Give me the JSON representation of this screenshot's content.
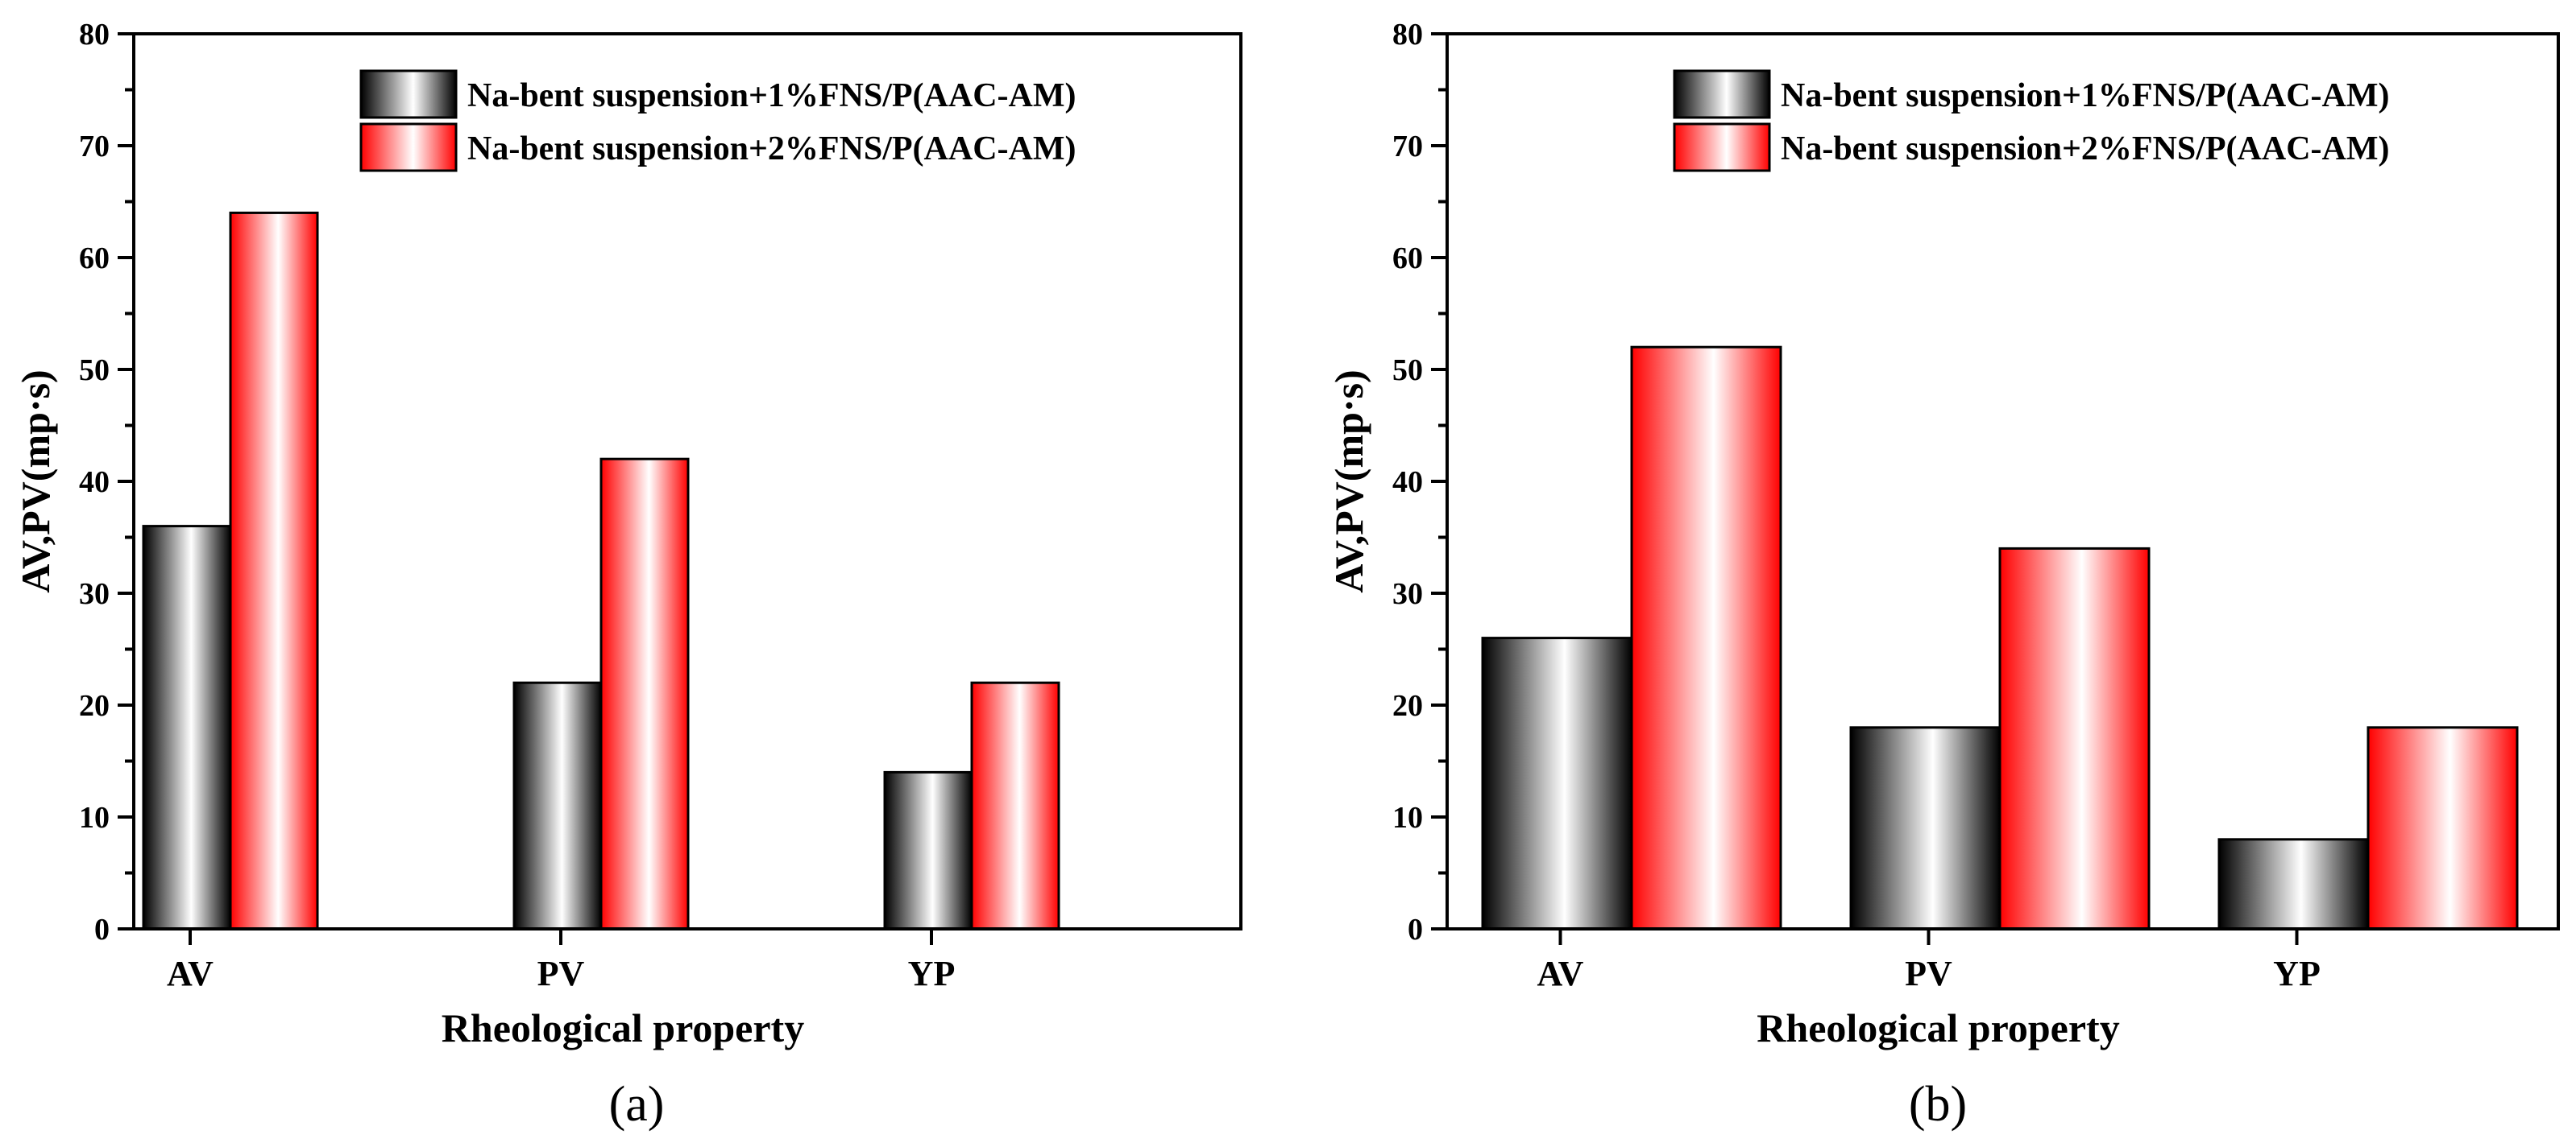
{
  "chart_data": [
    {
      "type": "bar",
      "panel_label": "(a)",
      "categories": [
        "AV",
        "PV",
        "YP"
      ],
      "series": [
        {
          "name": "Na-bent suspension+1%FNS/P(AAC-AM)",
          "values": [
            36,
            22,
            14
          ],
          "color": "#000000"
        },
        {
          "name": "Na-bent suspension+2%FNS/P(AAC-AM)",
          "values": [
            64,
            42,
            22
          ],
          "color": "#ff0000"
        }
      ],
      "xlabel": "Rheological property",
      "ylabel": "AV,PV(mp·s)",
      "ylim": [
        0,
        80
      ],
      "yticks": [
        0,
        10,
        20,
        30,
        40,
        50,
        60,
        70,
        80
      ],
      "legend_position": "top-right"
    },
    {
      "type": "bar",
      "panel_label": "(b)",
      "categories": [
        "AV",
        "PV",
        "YP"
      ],
      "series": [
        {
          "name": "Na-bent suspension+1%FNS/P(AAC-AM)",
          "values": [
            26,
            18,
            8
          ],
          "color": "#000000"
        },
        {
          "name": "Na-bent suspension+2%FNS/P(AAC-AM)",
          "values": [
            52,
            34,
            18
          ],
          "color": "#ff0000"
        }
      ],
      "xlabel": "Rheological property",
      "ylabel": "AV,PV(mp·s)",
      "ylim": [
        0,
        80
      ],
      "yticks": [
        0,
        10,
        20,
        30,
        40,
        50,
        60,
        70,
        80
      ],
      "legend_position": "top-right"
    }
  ]
}
